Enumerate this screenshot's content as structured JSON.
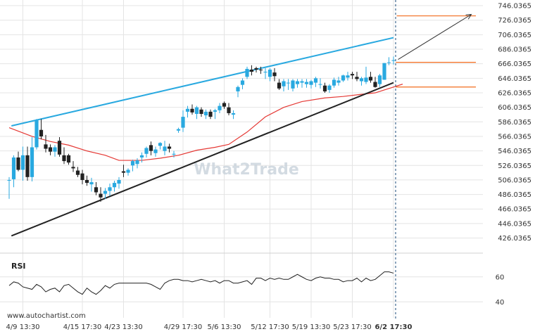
{
  "watermark": "What2Trade",
  "credit": "www.autochartist.com",
  "rsi_label": "RSI",
  "colors": {
    "up": "#29a9e0",
    "down": "#222222",
    "resistance": "#29a9e0",
    "support": "#222222",
    "ma": "#e53935",
    "levels": "#f26b1d",
    "projection": "#333333",
    "grid": "#e4e4e4"
  },
  "chart_data": {
    "type": "candlestick",
    "y_ticks": [
      "746.0365",
      "726.0365",
      "706.0365",
      "686.0365",
      "666.0365",
      "646.0365",
      "626.0365",
      "606.0365",
      "586.0365",
      "566.0365",
      "546.0365",
      "526.0365",
      "506.0365",
      "486.0365",
      "466.0365",
      "446.0365",
      "426.0365"
    ],
    "ylim": [
      413,
      749
    ],
    "x_ticks": [
      "4/9 13:30",
      "4/15 17:30",
      "4/23 13:30",
      "4/29 17:30",
      "5/6 13:30",
      "5/12 17:30",
      "5/19 13:30",
      "5/23 17:30",
      "6/2 17:30"
    ],
    "candles": [
      [
        506,
        510,
        480,
        506
      ],
      [
        507,
        540,
        496,
        537
      ],
      [
        537,
        545,
        518,
        520
      ],
      [
        520,
        552,
        505,
        540
      ],
      [
        540,
        552,
        505,
        510
      ],
      [
        510,
        565,
        504,
        551
      ],
      [
        551,
        590,
        548,
        588
      ],
      [
        575,
        590,
        562,
        566
      ],
      [
        555,
        568,
        544,
        549
      ],
      [
        551,
        555,
        540,
        545
      ],
      [
        545,
        554,
        538,
        551
      ],
      [
        560,
        565,
        538,
        541
      ],
      [
        540,
        551,
        528,
        532
      ],
      [
        540,
        542,
        527,
        530
      ],
      [
        524,
        532,
        517,
        522
      ],
      [
        519,
        524,
        510,
        513
      ],
      [
        515,
        520,
        500,
        506
      ],
      [
        506,
        512,
        498,
        502
      ],
      [
        500,
        509,
        490,
        503
      ],
      [
        496,
        503,
        485,
        489
      ],
      [
        487,
        496,
        476,
        482
      ],
      [
        487,
        495,
        480,
        491
      ],
      [
        491,
        501,
        484,
        496
      ],
      [
        496,
        505,
        490,
        502
      ],
      [
        501,
        510,
        494,
        506
      ],
      [
        518,
        527,
        510,
        516
      ],
      [
        516,
        522,
        512,
        520
      ],
      [
        526,
        534,
        518,
        532
      ],
      [
        528,
        536,
        522,
        533
      ],
      [
        537,
        544,
        530,
        540
      ],
      [
        542,
        552,
        537,
        550
      ],
      [
        554,
        559,
        540,
        546
      ],
      [
        543,
        552,
        538,
        548
      ],
      [
        553,
        558,
        548,
        557
      ],
      [
        546,
        560,
        540,
        552
      ],
      [
        552,
        556,
        544,
        549
      ],
      [
        541,
        546,
        537,
        542
      ],
      [
        574,
        578,
        571,
        576
      ],
      [
        578,
        602,
        572,
        593
      ],
      [
        600,
        608,
        592,
        604
      ],
      [
        604,
        610,
        596,
        599
      ],
      [
        597,
        608,
        590,
        606
      ],
      [
        603,
        606,
        593,
        597
      ],
      [
        595,
        603,
        590,
        600
      ],
      [
        600,
        603,
        590,
        593
      ],
      [
        600,
        604,
        590,
        602
      ],
      [
        602,
        612,
        598,
        608
      ],
      [
        612,
        614,
        604,
        607
      ],
      [
        606,
        612,
        595,
        598
      ],
      [
        596,
        602,
        590,
        598
      ],
      [
        628,
        636,
        620,
        634
      ],
      [
        637,
        646,
        631,
        643
      ],
      [
        648,
        662,
        645,
        659
      ],
      [
        658,
        664,
        650,
        655
      ],
      [
        660,
        662,
        654,
        658
      ],
      [
        658,
        662,
        652,
        657
      ],
      [
        655,
        660,
        645,
        655
      ],
      [
        648,
        660,
        642,
        658
      ],
      [
        654,
        660,
        642,
        649
      ],
      [
        640,
        645,
        630,
        632
      ],
      [
        635,
        645,
        628,
        642
      ],
      [
        640,
        645,
        630,
        640
      ],
      [
        632,
        645,
        628,
        643
      ],
      [
        638,
        645,
        633,
        642
      ],
      [
        640,
        645,
        633,
        642
      ],
      [
        638,
        645,
        633,
        641
      ],
      [
        637,
        644,
        632,
        642
      ],
      [
        640,
        648,
        634,
        646
      ],
      [
        638,
        646,
        632,
        638
      ],
      [
        636,
        640,
        626,
        628
      ],
      [
        630,
        638,
        626,
        636
      ],
      [
        636,
        647,
        633,
        644
      ],
      [
        640,
        648,
        636,
        643
      ],
      [
        643,
        651,
        641,
        650
      ],
      [
        647,
        655,
        643,
        650
      ],
      [
        652,
        655,
        645,
        650
      ],
      [
        648,
        655,
        642,
        645
      ],
      [
        642,
        648,
        636,
        646
      ],
      [
        641,
        662,
        638,
        647
      ],
      [
        648,
        655,
        640,
        643
      ],
      [
        641,
        648,
        633,
        634
      ],
      [
        638,
        652,
        634,
        650
      ],
      [
        644,
        667,
        644,
        667
      ],
      [
        668,
        675,
        664,
        668
      ],
      [
        671,
        676,
        665,
        671
      ]
    ],
    "resistance_line": [
      [
        0.5,
        580.5
      ],
      [
        84.0,
        702.0
      ]
    ],
    "support_line": [
      [
        0.5,
        429.0
      ],
      [
        84.0,
        640.0
      ]
    ],
    "ma_line": [
      [
        0,
        578
      ],
      [
        5,
        566
      ],
      [
        9,
        559
      ],
      [
        13,
        554
      ],
      [
        17,
        546
      ],
      [
        21,
        540
      ],
      [
        24,
        533
      ],
      [
        29,
        533
      ],
      [
        33,
        536
      ],
      [
        37,
        540
      ],
      [
        41,
        547
      ],
      [
        45,
        551
      ],
      [
        48,
        555
      ],
      [
        52,
        572
      ],
      [
        56,
        593
      ],
      [
        60,
        606
      ],
      [
        64,
        614
      ],
      [
        69,
        619
      ],
      [
        73,
        621
      ],
      [
        77,
        624
      ],
      [
        80,
        626
      ],
      [
        84,
        634
      ],
      [
        86,
        638
      ]
    ],
    "levels": [
      {
        "value": 732,
        "from": 84.7,
        "to": 102
      },
      {
        "value": 668,
        "from": 84.5,
        "to": 102
      },
      {
        "value": 634,
        "from": 84.5,
        "to": 102
      }
    ],
    "projection": [
      [
        85,
        672
      ],
      [
        101,
        734
      ]
    ],
    "current_index": 84,
    "rsi": {
      "y_ticks": [
        "60",
        "40"
      ],
      "ylim": [
        30,
        70
      ],
      "values": [
        53,
        56,
        55,
        52,
        51,
        50,
        54,
        52,
        48,
        50,
        51,
        48,
        53,
        54,
        51,
        48,
        46,
        51,
        48,
        46,
        49,
        53,
        51,
        54,
        55,
        55,
        55,
        55,
        55,
        55,
        55,
        54,
        52,
        50,
        55,
        57,
        58,
        58,
        57,
        57,
        56,
        57,
        58,
        57,
        56,
        57,
        55,
        57,
        57,
        55,
        55,
        56,
        57,
        54,
        59,
        59,
        57,
        59,
        58,
        59,
        58,
        58,
        60,
        62,
        60,
        58,
        57,
        59,
        60,
        59,
        59,
        58,
        58,
        56,
        57,
        57,
        59,
        56,
        59,
        57,
        58,
        61,
        64,
        64,
        63
      ]
    }
  }
}
